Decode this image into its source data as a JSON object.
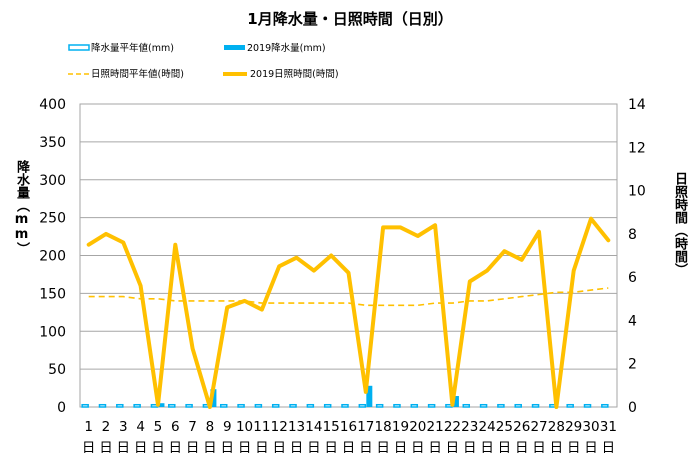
{
  "chart_data": {
    "type": "bar",
    "title": "1月降水量・日照時間（日別）",
    "ylabel": "降水量（mm）",
    "y2label": "日照時間（時間）",
    "ylim": [
      0,
      400
    ],
    "y2lim": [
      0,
      14
    ],
    "y_ticks": [
      0,
      50,
      100,
      150,
      200,
      250,
      300,
      350,
      400
    ],
    "y2_ticks": [
      0,
      2,
      4,
      6,
      8,
      10,
      12,
      14
    ],
    "categories": [
      "1",
      "2",
      "3",
      "4",
      "5",
      "6",
      "7",
      "8",
      "9",
      "10",
      "11",
      "12",
      "13",
      "14",
      "15",
      "16",
      "17",
      "18",
      "19",
      "20",
      "21",
      "22",
      "23",
      "24",
      "25",
      "26",
      "27",
      "28",
      "29",
      "30",
      "31"
    ],
    "category_unit": "日",
    "grid": true,
    "legend_position": "top",
    "series": [
      {
        "name": "降水量平年値(mm)",
        "type": "bar",
        "axis": "left",
        "style": "outline",
        "color": "#00B0F0",
        "values": [
          3,
          3,
          3,
          3,
          3,
          3,
          3,
          3,
          3,
          3,
          3,
          3,
          3,
          3,
          3,
          3,
          3,
          3,
          3,
          3,
          3,
          3,
          3,
          3,
          3,
          3,
          3,
          3,
          3,
          3,
          3
        ]
      },
      {
        "name": "2019降水量(mm)",
        "type": "bar",
        "axis": "left",
        "style": "solid",
        "color": "#00B0F0",
        "values": [
          0,
          0,
          0,
          0,
          5,
          0,
          0,
          23.5,
          0,
          0,
          0,
          0,
          0,
          0,
          0,
          0,
          28,
          0,
          0,
          0,
          0,
          14.5,
          0,
          0,
          0,
          0,
          0,
          0,
          0,
          0,
          0
        ]
      },
      {
        "name": "日照時間平年値(時間)",
        "type": "line",
        "axis": "right",
        "style": "dashed",
        "color": "#FFC000",
        "values": [
          5.1,
          5.1,
          5.1,
          5.0,
          5.0,
          4.9,
          4.9,
          4.9,
          4.9,
          4.9,
          4.8,
          4.8,
          4.8,
          4.8,
          4.8,
          4.8,
          4.7,
          4.7,
          4.7,
          4.7,
          4.8,
          4.8,
          4.9,
          4.9,
          5.0,
          5.1,
          5.2,
          5.3,
          5.3,
          5.4,
          5.5
        ]
      },
      {
        "name": "2019日照時間(時間)",
        "type": "line",
        "axis": "right",
        "style": "solid",
        "color": "#FFC000",
        "values": [
          7.5,
          8.0,
          7.6,
          5.6,
          0.1,
          7.5,
          2.7,
          0.0,
          4.6,
          4.9,
          4.5,
          6.5,
          6.9,
          6.3,
          7.0,
          6.2,
          0.7,
          8.3,
          8.3,
          7.9,
          8.4,
          0.1,
          5.8,
          6.3,
          7.2,
          6.8,
          8.1,
          0.0,
          6.3,
          8.7,
          7.7
        ]
      }
    ]
  }
}
